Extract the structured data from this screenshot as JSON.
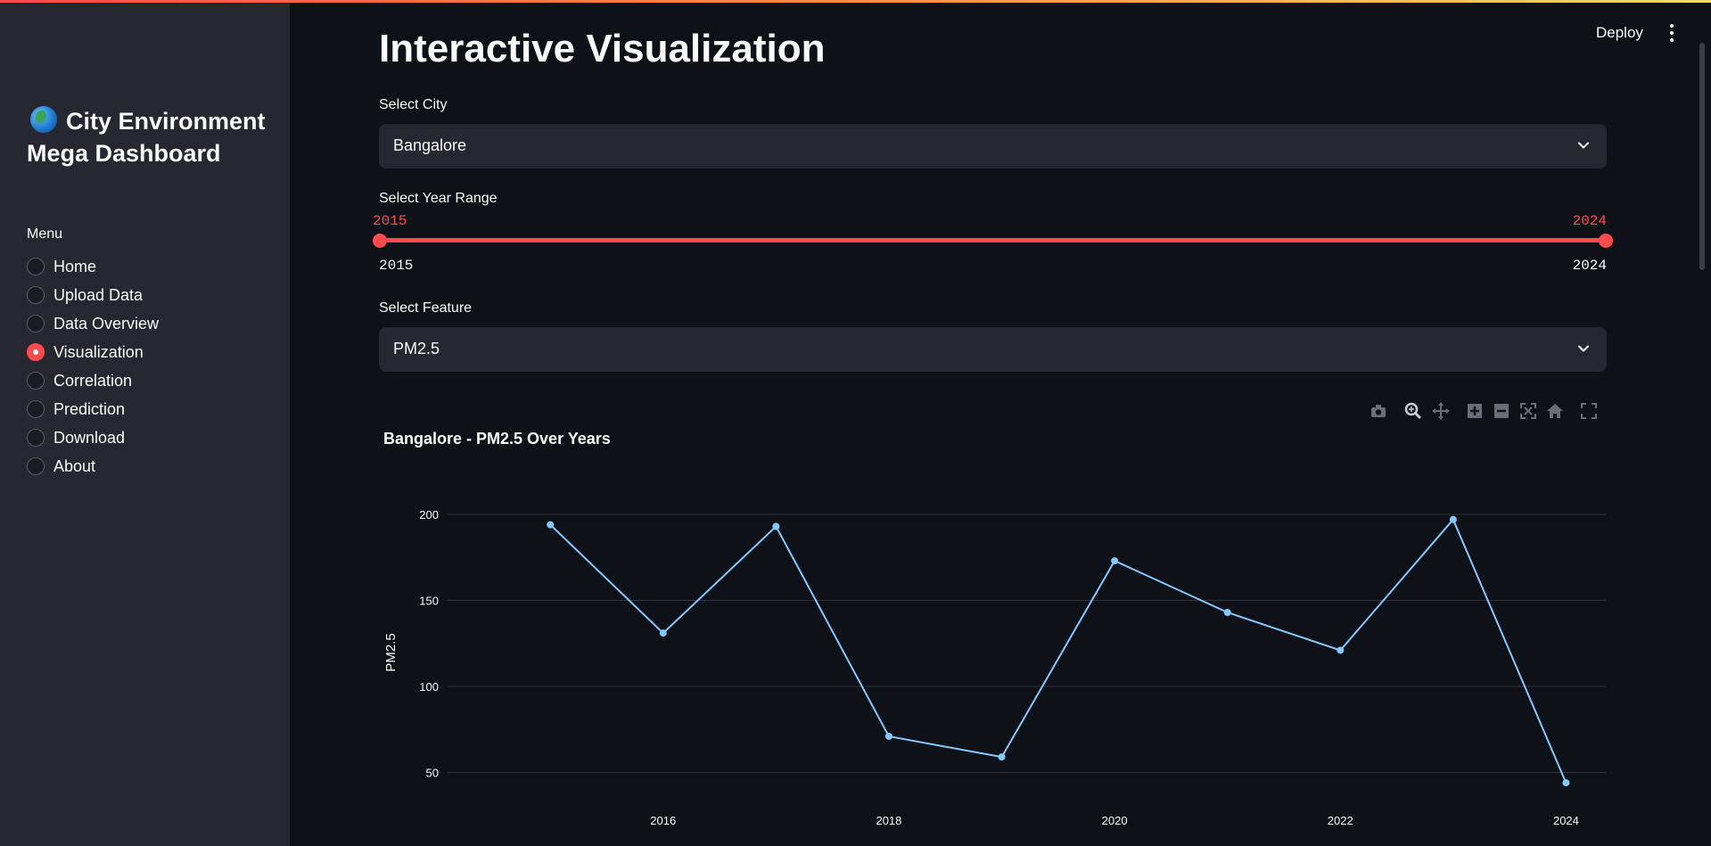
{
  "sidebar": {
    "title": "City Environment Mega Dashboard",
    "menu_label": "Menu",
    "items": [
      {
        "label": "Home",
        "selected": false
      },
      {
        "label": "Upload Data",
        "selected": false
      },
      {
        "label": "Data Overview",
        "selected": false
      },
      {
        "label": "Visualization",
        "selected": true
      },
      {
        "label": "Correlation",
        "selected": false
      },
      {
        "label": "Prediction",
        "selected": false
      },
      {
        "label": "Download",
        "selected": false
      },
      {
        "label": "About",
        "selected": false
      }
    ]
  },
  "header": {
    "deploy_label": "Deploy"
  },
  "main": {
    "title": "Interactive Visualization",
    "city": {
      "label": "Select City",
      "value": "Bangalore"
    },
    "year_range": {
      "label": "Select Year Range",
      "low": "2015",
      "high": "2024",
      "min": "2015",
      "max": "2024"
    },
    "feature": {
      "label": "Select Feature",
      "value": "PM2.5"
    }
  },
  "colors": {
    "accent": "#ff4b4b",
    "line": "#83c9ff",
    "bg": "#0e1117",
    "sidebar": "#262730"
  },
  "chart_data": {
    "type": "line",
    "title": "Bangalore - PM2.5 Over Years",
    "xlabel": "",
    "ylabel": "PM2.5",
    "x": [
      2015,
      2016,
      2017,
      2018,
      2019,
      2020,
      2021,
      2022,
      2023,
      2024
    ],
    "series": [
      {
        "values": [
          194,
          131,
          193,
          71,
          59,
          173,
          143,
          121,
          197,
          44
        ]
      }
    ],
    "x_ticks": [
      "2016",
      "2018",
      "2020",
      "2022",
      "2024"
    ],
    "y_ticks": [
      "50",
      "100",
      "150",
      "200"
    ],
    "grid": true,
    "toolbar": [
      "camera-icon",
      "zoom-icon",
      "pan-icon",
      "zoom-in-icon",
      "zoom-out-icon",
      "autoscale-icon",
      "reset-axes-icon",
      "fullscreen-icon"
    ]
  }
}
